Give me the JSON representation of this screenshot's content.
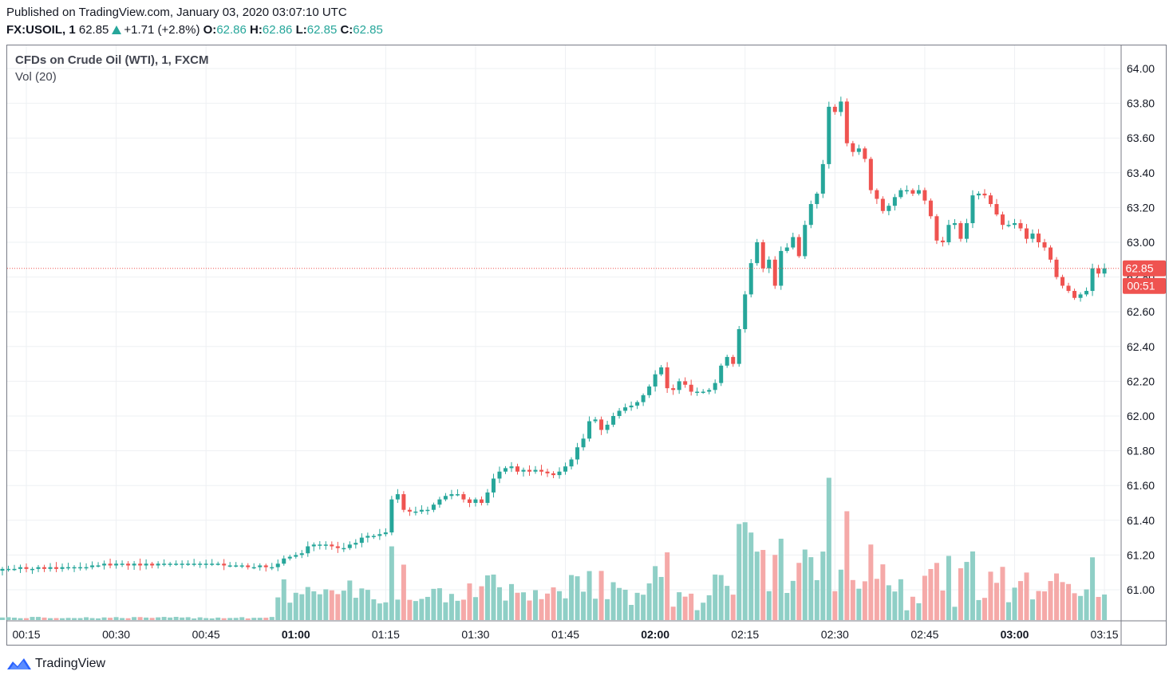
{
  "header": {
    "published": "Published on TradingView.com, January 03, 2020 03:07:10 UTC",
    "symbol": "FX:USOIL, 1",
    "last": "62.85",
    "change": "+1.71 (+2.8%)",
    "o_label": "O:",
    "o_value": "62.86",
    "h_label": "H:",
    "h_value": "62.86",
    "l_label": "L:",
    "l_value": "62.85",
    "c_label": "C:",
    "c_value": "62.85"
  },
  "legend": {
    "series_title": "CFDs on Crude Oil (WTI), 1, FXCM",
    "volume_title": "Vol (20)"
  },
  "price_badge": "62.85",
  "countdown_badge": "00:51",
  "footer": {
    "brand": "TradingView"
  },
  "colors": {
    "up": "#26a69a",
    "down": "#ef5350",
    "up_vol": "#8fcfc6",
    "down_vol": "#f5a9a8",
    "grid": "#eef0f3",
    "price_line": "#ef5350"
  },
  "chart_data": {
    "type": "candlestick",
    "title": "CFDs on Crude Oil (WTI), 1, FXCM",
    "x_tick_labels": [
      "00:15",
      "00:30",
      "00:45",
      "01:00",
      "01:15",
      "01:30",
      "01:45",
      "02:00",
      "02:15",
      "02:30",
      "02:45",
      "03:00",
      "03:15"
    ],
    "bold_x_ticks": [
      "01:00",
      "02:00",
      "03:00"
    ],
    "y_tick_labels": [
      "64.00",
      "63.80",
      "63.60",
      "63.40",
      "63.20",
      "63.00",
      "62.80",
      "62.60",
      "62.40",
      "62.20",
      "62.00",
      "61.80",
      "61.60",
      "61.40",
      "61.20",
      "61.00"
    ],
    "ylim": [
      60.84,
      64.08
    ],
    "time_start": "00:09",
    "time_end": "03:07",
    "closes": [
      61.11,
      61.11,
      61.12,
      61.12,
      61.12,
      61.13,
      61.12,
      61.12,
      61.13,
      61.12,
      61.13,
      61.12,
      61.13,
      61.13,
      61.13,
      61.13,
      61.13,
      61.14,
      61.14,
      61.15,
      61.14,
      61.15,
      61.15,
      61.14,
      61.15,
      61.14,
      61.15,
      61.14,
      61.15,
      61.15,
      61.15,
      61.15,
      61.15,
      61.15,
      61.15,
      61.15,
      61.15,
      61.15,
      61.15,
      61.14,
      61.14,
      61.14,
      61.14,
      61.13,
      61.13,
      61.14,
      61.13,
      61.13,
      61.15,
      61.18,
      61.19,
      61.2,
      61.21,
      61.25,
      61.26,
      61.26,
      61.26,
      61.25,
      61.24,
      61.24,
      61.26,
      61.27,
      61.3,
      61.31,
      61.31,
      61.32,
      61.33,
      61.52,
      61.55,
      61.46,
      61.45,
      61.45,
      61.46,
      61.46,
      61.49,
      61.52,
      61.54,
      61.55,
      61.55,
      61.52,
      61.5,
      61.52,
      61.5,
      61.56,
      61.64,
      61.68,
      61.7,
      61.71,
      61.68,
      61.69,
      61.68,
      61.69,
      61.68,
      61.67,
      61.66,
      61.68,
      61.71,
      61.75,
      61.82,
      61.87,
      61.97,
      61.98,
      61.92,
      61.95,
      62.0,
      62.03,
      62.05,
      62.06,
      62.08,
      62.12,
      62.17,
      62.24,
      62.28,
      62.16,
      62.15,
      62.2,
      62.18,
      62.14,
      62.14,
      62.14,
      62.15,
      62.19,
      62.29,
      62.34,
      62.3,
      62.5,
      62.7,
      62.88,
      63.0,
      62.85,
      62.9,
      62.75,
      62.95,
      62.97,
      63.03,
      62.92,
      63.1,
      63.22,
      63.28,
      63.45,
      63.78,
      63.75,
      63.81,
      63.57,
      63.52,
      63.54,
      63.48,
      63.3,
      63.25,
      63.18,
      63.21,
      63.26,
      63.3,
      63.3,
      63.28,
      63.3,
      63.24,
      63.15,
      63.01,
      63.0,
      63.1,
      63.11,
      63.02,
      63.11,
      63.27,
      63.28,
      63.27,
      63.22,
      63.16,
      63.1,
      63.1,
      63.11,
      63.08,
      63.02,
      63.05,
      63.0,
      62.97,
      62.9,
      62.8,
      62.75,
      62.72,
      62.68,
      62.7,
      62.72,
      62.85,
      62.82,
      62.85
    ]
  }
}
